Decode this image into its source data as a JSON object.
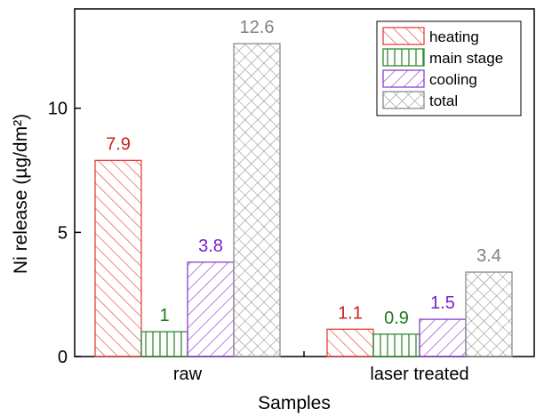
{
  "chart_data": {
    "type": "bar",
    "categories": [
      "raw",
      "laser treated"
    ],
    "xlabel": "Samples",
    "ylabel": "Ni release (µg/dm²)",
    "ylim": [
      0,
      14
    ],
    "yticks": [
      0,
      5,
      10
    ],
    "legend_position": "top-right",
    "series": [
      {
        "name": "heating",
        "values": [
          7.9,
          1.1
        ],
        "labels": [
          "7.9",
          "1.1"
        ],
        "color": "#e8413a",
        "label_color": "#cc1f1a",
        "pattern": "diagonal-right"
      },
      {
        "name": "main stage",
        "values": [
          1,
          0.9
        ],
        "labels": [
          "1",
          "0.9"
        ],
        "color": "#2e8b2e",
        "label_color": "#1f7a1f",
        "pattern": "vertical"
      },
      {
        "name": "cooling",
        "values": [
          3.8,
          1.5
        ],
        "labels": [
          "3.8",
          "1.5"
        ],
        "color": "#8b3fd0",
        "label_color": "#7a1fcc",
        "pattern": "diagonal-left"
      },
      {
        "name": "total",
        "values": [
          12.6,
          3.4
        ],
        "labels": [
          "12.6",
          "3.4"
        ],
        "color": "#8c8c8c",
        "label_color": "#808080",
        "pattern": "crosshatch"
      }
    ]
  }
}
